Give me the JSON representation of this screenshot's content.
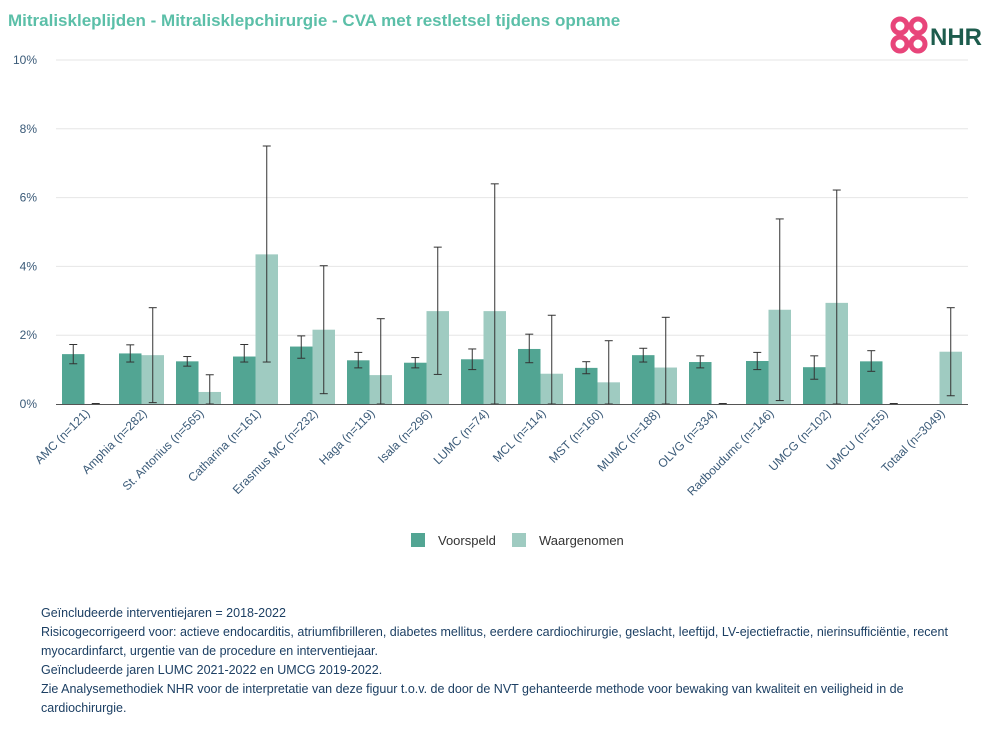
{
  "title": "Mitraliskleplijden - Mitralisklepchirurgie - CVA met restletsel tijdens opname",
  "logo": {
    "text": "NHR",
    "colors": {
      "mark": "#e8457a",
      "text": "#1d5c4d"
    }
  },
  "colors": {
    "voorspeld": "#52a593",
    "waargenomen": "#9fcbc1",
    "grid": "#e6e6e6",
    "axis": "#555555",
    "errorbar": "#333333"
  },
  "chart_data": {
    "type": "bar",
    "categories": [
      "AMC (n=121)",
      "Amphia (n=282)",
      "St. Antonius (n=565)",
      "Catharina (n=161)",
      "Erasmus MC (n=232)",
      "Haga (n=119)",
      "Isala (n=296)",
      "LUMC (n=74)",
      "MCL (n=114)",
      "MST (n=160)",
      "MUMC (n=188)",
      "OLVG (n=334)",
      "Radboudumc (n=146)",
      "UMCG (n=102)",
      "UMCU (n=155)",
      "Totaal (n=3049)"
    ],
    "series": [
      {
        "name": "Voorspeld",
        "values": [
          1.45,
          1.47,
          1.24,
          1.38,
          1.67,
          1.27,
          1.2,
          1.3,
          1.6,
          1.05,
          1.42,
          1.22,
          1.25,
          1.07,
          1.24,
          null
        ],
        "err_low": [
          1.17,
          1.22,
          1.1,
          1.22,
          1.33,
          1.05,
          1.05,
          1.0,
          1.2,
          0.88,
          1.22,
          1.05,
          1.0,
          0.72,
          0.95,
          null
        ],
        "err_high": [
          1.73,
          1.72,
          1.38,
          1.73,
          1.98,
          1.5,
          1.35,
          1.6,
          2.03,
          1.23,
          1.62,
          1.4,
          1.5,
          1.4,
          1.55,
          null
        ]
      },
      {
        "name": "Waargenomen",
        "values": [
          0.0,
          1.42,
          0.35,
          4.35,
          2.16,
          0.84,
          2.7,
          2.7,
          0.88,
          0.63,
          1.06,
          0.0,
          2.74,
          2.94,
          0.0,
          1.52
        ],
        "err_low": [
          null,
          0.04,
          0.0,
          1.22,
          0.3,
          0.0,
          0.86,
          0.0,
          0.0,
          0.0,
          0.0,
          null,
          0.1,
          0.0,
          null,
          0.24
        ],
        "err_high": [
          null,
          2.8,
          0.85,
          7.5,
          4.02,
          2.48,
          4.56,
          6.4,
          2.58,
          1.84,
          2.52,
          null,
          5.38,
          6.22,
          null,
          2.8
        ]
      }
    ],
    "yticks": [
      "0%",
      "2%",
      "4%",
      "6%",
      "8%",
      "10%"
    ],
    "ylim": [
      0,
      10
    ],
    "legend": {
      "position": "bottom-center",
      "items": [
        "Voorspeld",
        "Waargenomen"
      ]
    },
    "grid": true
  },
  "notes": [
    "Geïncludeerde interventiejaren = 2018-2022",
    "Risicogecorrigeerd voor: actieve endocarditis, atriumfibrilleren, diabetes mellitus, eerdere cardiochirurgie, geslacht, leeftijd, LV-ejectiefractie, nierinsufficiëntie, recent myocardinfarct, urgentie van de procedure en interventiejaar.",
    "Geïncludeerde jaren LUMC 2021-2022 en UMCG 2019-2022.",
    "Zie Analysemethodiek NHR voor de interpretatie van deze figuur t.o.v. de door de NVT gehanteerde methode voor bewaking van kwaliteit en veiligheid in de cardiochirurgie."
  ]
}
